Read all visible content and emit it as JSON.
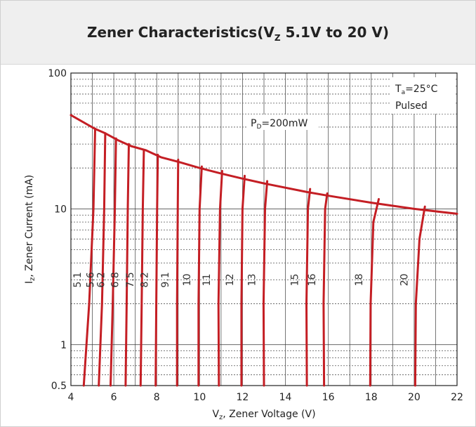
{
  "title": {
    "prefix": "Zener Characteristics(V",
    "sub": "Z",
    "suffix": " 5.1V to 20 V)"
  },
  "chart_data": {
    "type": "line",
    "title": "Zener Characteristics(VZ 5.1V to 20 V)",
    "xlabel": {
      "prefix": "V",
      "sub": "z",
      "suffix": ", Zener Voltage (V)"
    },
    "ylabel": {
      "prefix": "I",
      "sub": "z",
      "suffix": ", Zener Current (mA)"
    },
    "xlim": [
      4,
      22
    ],
    "ylim": [
      0.5,
      100
    ],
    "yscale": "log",
    "x_ticks": [
      "4",
      "6",
      "8",
      "10",
      "12",
      "14",
      "16",
      "18",
      "20",
      "22"
    ],
    "y_ticks": [
      {
        "value": 100,
        "label": "100"
      },
      {
        "value": 10,
        "label": "10"
      },
      {
        "value": 1,
        "label": "1"
      },
      {
        "value": 0.5,
        "label": "0.5"
      }
    ],
    "annotations": [
      {
        "prefix": "T",
        "sub": "a",
        "suffix": "=25°C"
      },
      {
        "text": "Pulsed"
      },
      {
        "prefix": "P",
        "sub": "D",
        "suffix": "=200mW"
      }
    ],
    "power_limit": {
      "x": [
        4.0,
        5.1,
        5.6,
        6.2,
        6.8,
        7.5,
        8.2,
        9.1,
        10.0,
        11.0,
        12.0,
        13.0,
        15.0,
        16.0,
        18.0,
        20.0,
        22.0
      ],
      "y": [
        49,
        39,
        36,
        32,
        29,
        27,
        24,
        22,
        20,
        18.2,
        16.7,
        15.4,
        13.3,
        12.5,
        11.1,
        10.0,
        9.2
      ]
    },
    "series": [
      {
        "name": "5.1",
        "x": [
          4.6,
          4.85,
          5.05,
          5.13
        ],
        "y": [
          0.5,
          2,
          10,
          39
        ]
      },
      {
        "name": "5.6",
        "x": [
          5.3,
          5.45,
          5.55,
          5.6
        ],
        "y": [
          0.5,
          2,
          10,
          36
        ]
      },
      {
        "name": "6.2",
        "x": [
          5.85,
          5.95,
          6.05,
          6.1
        ],
        "y": [
          0.5,
          2,
          10,
          33
        ]
      },
      {
        "name": "6.8",
        "x": [
          6.55,
          6.6,
          6.65,
          6.7
        ],
        "y": [
          0.5,
          2,
          10,
          30
        ]
      },
      {
        "name": "7.5",
        "x": [
          7.25,
          7.3,
          7.35,
          7.4
        ],
        "y": [
          0.5,
          2,
          10,
          27
        ]
      },
      {
        "name": "8.2",
        "x": [
          7.95,
          7.98,
          8.02,
          8.05
        ],
        "y": [
          0.5,
          2,
          10,
          25
        ]
      },
      {
        "name": "9.1",
        "x": [
          8.95,
          8.95,
          8.98,
          9.0
        ],
        "y": [
          0.5,
          2,
          10,
          23
        ]
      },
      {
        "name": "10",
        "x": [
          9.95,
          9.95,
          10.0,
          10.1
        ],
        "y": [
          0.5,
          2,
          10,
          20.5
        ]
      },
      {
        "name": "11",
        "x": [
          10.9,
          10.88,
          10.95,
          11.05
        ],
        "y": [
          0.5,
          2,
          10,
          19
        ]
      },
      {
        "name": "12",
        "x": [
          11.95,
          11.95,
          12.0,
          12.1
        ],
        "y": [
          0.5,
          2,
          10,
          17.5
        ]
      },
      {
        "name": "13",
        "x": [
          13.0,
          12.98,
          13.05,
          13.15
        ],
        "y": [
          0.5,
          2,
          10,
          16
        ]
      },
      {
        "name": "15",
        "x": [
          15.0,
          14.98,
          15.05,
          15.15
        ],
        "y": [
          0.5,
          2,
          10,
          14
        ]
      },
      {
        "name": "16",
        "x": [
          15.8,
          15.78,
          15.85,
          15.95
        ],
        "y": [
          0.5,
          2,
          10,
          13
        ]
      },
      {
        "name": "18",
        "x": [
          17.95,
          17.97,
          18.1,
          18.35
        ],
        "y": [
          0.5,
          2,
          8,
          11.8
        ]
      },
      {
        "name": "20",
        "x": [
          20.05,
          20.08,
          20.25,
          20.5
        ],
        "y": [
          0.5,
          2,
          6,
          10.4
        ]
      }
    ],
    "grid": true,
    "line_color": "#c41e24"
  }
}
